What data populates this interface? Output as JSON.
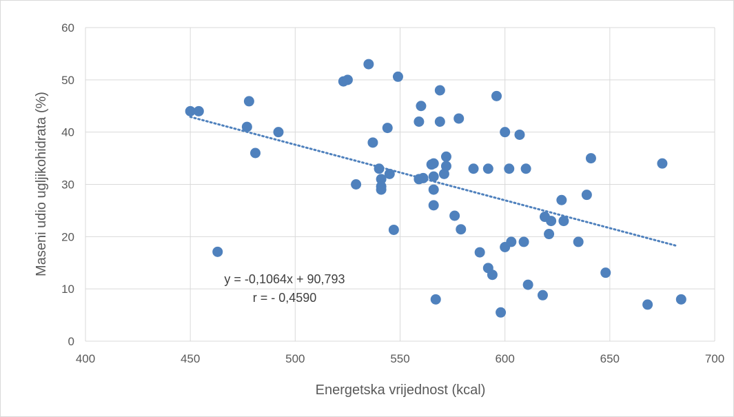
{
  "chart_data": {
    "type": "scatter",
    "xlabel": "Energetska vrijednost (kcal)",
    "ylabel": "Maseni udio ugljikohidrata (%)",
    "xlim": [
      400,
      700
    ],
    "ylim": [
      0,
      60
    ],
    "x_ticks": [
      400,
      450,
      500,
      550,
      600,
      650,
      700
    ],
    "y_ticks": [
      0,
      10,
      20,
      30,
      40,
      50,
      60
    ],
    "x_tick_labels": [
      "400",
      "450",
      "500",
      "550",
      "600",
      "650",
      "700"
    ],
    "y_tick_labels": [
      "0",
      "10",
      "20",
      "30",
      "40",
      "50",
      "60"
    ],
    "grid": "vertical and horizontal major gridlines",
    "series": [
      {
        "color": "#4f81bd",
        "points": [
          [
            450,
            44
          ],
          [
            454,
            44
          ],
          [
            463,
            17.1
          ],
          [
            477,
            41
          ],
          [
            478,
            45.9
          ],
          [
            481,
            36
          ],
          [
            492,
            40
          ],
          [
            523,
            49.7
          ],
          [
            525,
            50
          ],
          [
            529,
            30
          ],
          [
            535,
            53
          ],
          [
            537,
            38
          ],
          [
            540,
            33
          ],
          [
            541,
            31
          ],
          [
            541,
            29.6
          ],
          [
            541,
            29
          ],
          [
            544,
            40.8
          ],
          [
            545,
            32
          ],
          [
            547,
            21.3
          ],
          [
            549,
            50.6
          ],
          [
            559,
            42
          ],
          [
            559,
            31
          ],
          [
            560,
            45
          ],
          [
            561,
            31.2
          ],
          [
            565,
            33.8
          ],
          [
            566,
            34
          ],
          [
            566,
            31.5
          ],
          [
            566,
            29
          ],
          [
            566,
            26
          ],
          [
            567,
            8
          ],
          [
            569,
            48
          ],
          [
            569,
            42
          ],
          [
            571,
            32
          ],
          [
            572,
            33.5
          ],
          [
            572,
            35.3
          ],
          [
            576,
            24
          ],
          [
            578,
            42.6
          ],
          [
            579,
            21.4
          ],
          [
            585,
            33
          ],
          [
            588,
            17
          ],
          [
            592,
            33
          ],
          [
            592,
            14
          ],
          [
            594,
            12.7
          ],
          [
            596,
            46.9
          ],
          [
            598,
            5.5
          ],
          [
            600,
            40
          ],
          [
            600,
            18
          ],
          [
            602,
            33
          ],
          [
            603,
            19
          ],
          [
            607,
            39.5
          ],
          [
            609,
            19
          ],
          [
            610,
            33
          ],
          [
            611,
            10.8
          ],
          [
            618,
            8.8
          ],
          [
            619,
            23.8
          ],
          [
            621,
            20.5
          ],
          [
            622,
            23
          ],
          [
            627,
            27
          ],
          [
            628,
            23
          ],
          [
            635,
            19
          ],
          [
            639,
            28
          ],
          [
            641,
            35
          ],
          [
            648,
            13.1
          ],
          [
            668,
            7
          ],
          [
            675,
            34
          ],
          [
            684,
            8
          ]
        ]
      }
    ],
    "trendline": {
      "slope": -0.1064,
      "intercept": 90.793,
      "x_range": [
        450,
        682
      ],
      "color": "#4f81bd",
      "style": "dotted"
    },
    "annotations": [
      "y = -0,1064x + 90,793",
      "r = - 0,4590"
    ]
  }
}
